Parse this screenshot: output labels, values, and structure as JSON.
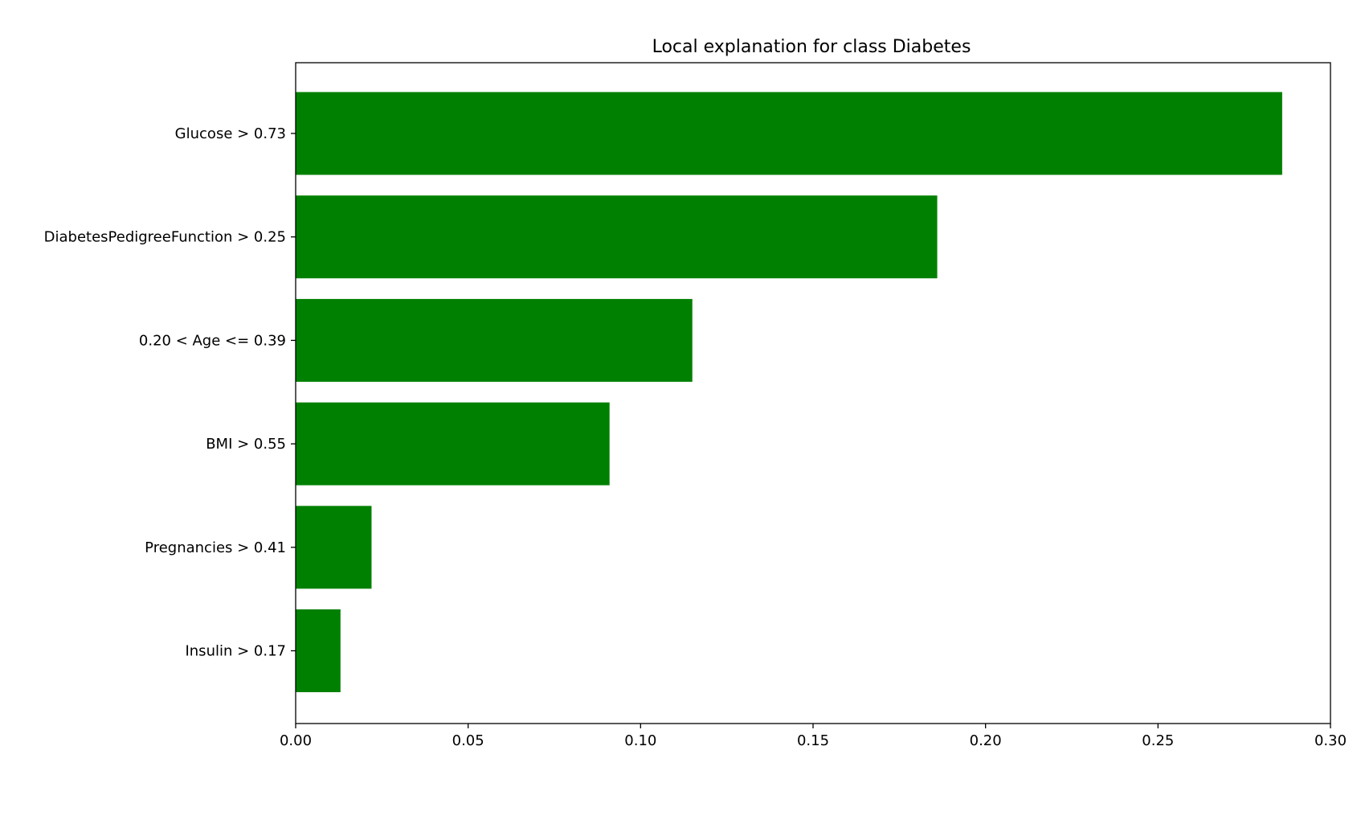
{
  "chart_data": {
    "type": "bar",
    "orientation": "horizontal",
    "title": "Local explanation for class Diabetes",
    "xlabel": "",
    "ylabel": "",
    "categories": [
      "Glucose > 0.73",
      "DiabetesPedigreeFunction > 0.25",
      "0.20 < Age <= 0.39",
      "BMI > 0.55",
      "Pregnancies > 0.41",
      "Insulin > 0.17"
    ],
    "values": [
      0.286,
      0.186,
      0.115,
      0.091,
      0.022,
      0.013
    ],
    "xlim": [
      0.0,
      0.3
    ],
    "xticks": [
      "0.00",
      "0.05",
      "0.10",
      "0.15",
      "0.20",
      "0.25",
      "0.30"
    ],
    "bar_color": "#008000",
    "grid": false,
    "legend": "none"
  }
}
